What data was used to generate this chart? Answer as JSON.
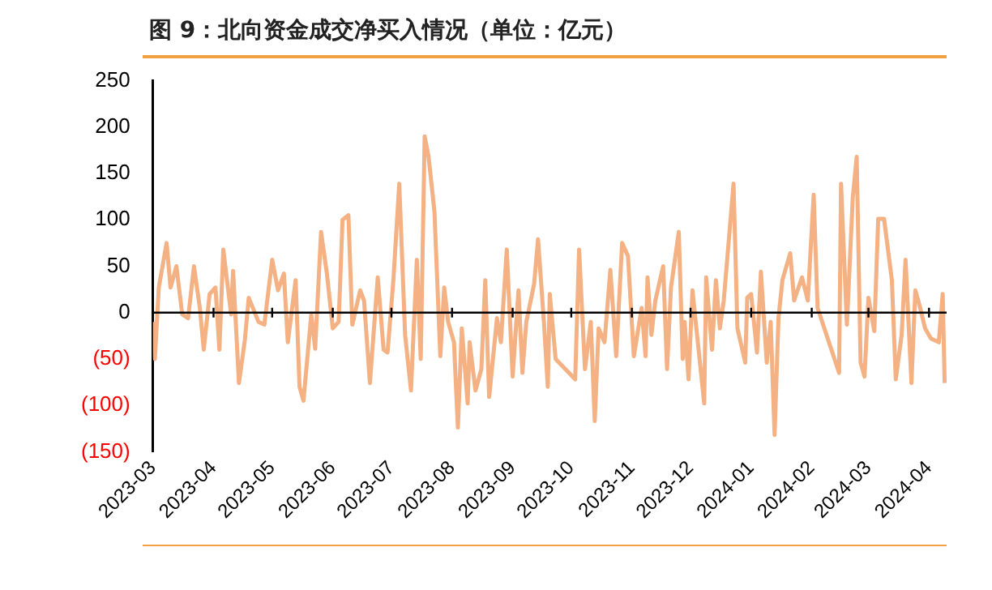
{
  "chart_data": {
    "type": "line",
    "title": "图 9：北向资金成交净买入情况（单位：亿元）",
    "x": [
      "2023-03-01",
      "2023-03-02",
      "2023-03-04",
      "2023-03-08",
      "2023-03-10",
      "2023-03-13",
      "2023-03-16",
      "2023-03-19",
      "2023-03-22",
      "2023-03-25",
      "2023-03-27",
      "2023-03-30",
      "2023-04-02",
      "2023-04-04",
      "2023-04-06",
      "2023-04-10",
      "2023-04-11",
      "2023-04-14",
      "2023-04-17",
      "2023-04-19",
      "2023-04-24",
      "2023-04-27",
      "2023-05-01",
      "2023-05-04",
      "2023-05-07",
      "2023-05-09",
      "2023-05-13",
      "2023-05-15",
      "2023-05-17",
      "2023-05-21",
      "2023-05-23",
      "2023-05-26",
      "2023-05-29",
      "2023-06-01",
      "2023-06-04",
      "2023-06-06",
      "2023-06-09",
      "2023-06-11",
      "2023-06-15",
      "2023-06-17",
      "2023-06-20",
      "2023-06-24",
      "2023-06-27",
      "2023-06-29",
      "2023-07-02",
      "2023-07-05",
      "2023-07-08",
      "2023-07-11",
      "2023-07-14",
      "2023-07-16",
      "2023-07-18",
      "2023-07-20",
      "2023-07-23",
      "2023-07-26",
      "2023-07-28",
      "2023-07-30",
      "2023-08-02",
      "2023-08-04",
      "2023-08-06",
      "2023-08-09",
      "2023-08-10",
      "2023-08-13",
      "2023-08-16",
      "2023-08-18",
      "2023-08-20",
      "2023-08-24",
      "2023-08-26",
      "2023-08-29",
      "2023-09-01",
      "2023-09-04",
      "2023-09-06",
      "2023-09-08",
      "2023-09-12",
      "2023-09-14",
      "2023-09-17",
      "2023-09-19",
      "2023-09-20",
      "2023-09-23",
      "2023-10-03",
      "2023-10-05",
      "2023-10-08",
      "2023-10-11",
      "2023-10-13",
      "2023-10-15",
      "2023-10-18",
      "2023-10-21",
      "2023-10-24",
      "2023-10-27",
      "2023-10-30",
      "2023-11-02",
      "2023-11-06",
      "2023-11-08",
      "2023-11-09",
      "2023-11-11",
      "2023-11-13",
      "2023-11-17",
      "2023-11-19",
      "2023-11-21",
      "2023-11-25",
      "2023-11-27",
      "2023-11-28",
      "2023-11-30",
      "2023-12-02",
      "2023-12-04",
      "2023-12-08",
      "2023-12-09",
      "2023-12-12",
      "2023-12-14",
      "2023-12-16",
      "2023-12-18",
      "2023-12-23",
      "2023-12-25",
      "2023-12-29",
      "2023-12-30",
      "2024-01-01",
      "2024-01-04",
      "2024-01-06",
      "2024-01-09",
      "2024-01-11",
      "2024-01-13",
      "2024-01-15",
      "2024-01-17",
      "2024-01-21",
      "2024-01-23",
      "2024-01-27",
      "2024-01-30",
      "2024-02-02",
      "2024-02-04",
      "2024-02-15",
      "2024-02-16",
      "2024-02-19",
      "2024-02-22",
      "2024-02-24",
      "2024-02-26",
      "2024-02-28",
      "2024-03-01",
      "2024-03-04",
      "2024-03-06",
      "2024-03-09",
      "2024-03-13",
      "2024-03-15",
      "2024-03-18",
      "2024-03-20",
      "2024-03-23",
      "2024-03-25",
      "2024-03-27",
      "2024-03-30",
      "2024-04-02",
      "2024-04-06",
      "2024-04-08",
      "2024-04-09"
    ],
    "series": [
      {
        "color": "#f4b183",
        "values": [
          -10,
          -50,
          27,
          75,
          27,
          50,
          -2,
          -6,
          50,
          5,
          -40,
          20,
          27,
          -40,
          68,
          -2,
          45,
          -76,
          -30,
          16,
          -10,
          -13,
          57,
          24,
          42,
          -32,
          35,
          -80,
          -95,
          -2,
          -39,
          87,
          42,
          -17,
          -10,
          100,
          105,
          -13,
          24,
          13,
          -76,
          38,
          -40,
          -43,
          35,
          139,
          -24,
          -84,
          57,
          -50,
          190,
          168,
          109,
          -47,
          27,
          -10,
          -32,
          -124,
          -17,
          -98,
          -32,
          -84,
          -61,
          35,
          -91,
          -6,
          -32,
          68,
          -69,
          24,
          -65,
          -10,
          31,
          79,
          -10,
          -80,
          20,
          -50,
          -72,
          68,
          -61,
          -10,
          -117,
          -17,
          -32,
          46,
          -47,
          75,
          61,
          -47,
          5,
          -47,
          38,
          -24,
          13,
          50,
          -61,
          27,
          87,
          -50,
          -10,
          -72,
          24,
          -17,
          -98,
          38,
          -40,
          35,
          -17,
          13,
          139,
          -17,
          -54,
          16,
          20,
          -43,
          44,
          -54,
          -10,
          -132,
          -6,
          35,
          64,
          13,
          38,
          13,
          127,
          5,
          -65,
          139,
          -13,
          124,
          168,
          -54,
          -69,
          16,
          -20,
          101,
          101,
          35,
          -72,
          -24,
          57,
          -76,
          24,
          9,
          -17,
          -28,
          -32,
          20,
          -76
        ]
      }
    ],
    "xlim": [
      "2023-03-01",
      "2024-04-10"
    ],
    "xticks": [
      {
        "value": "2023-03-01",
        "label": "2023-03"
      },
      {
        "value": "2023-04-01",
        "label": "2023-04"
      },
      {
        "value": "2023-05-01",
        "label": "2023-05"
      },
      {
        "value": "2023-06-01",
        "label": "2023-06"
      },
      {
        "value": "2023-07-01",
        "label": "2023-07"
      },
      {
        "value": "2023-08-01",
        "label": "2023-08"
      },
      {
        "value": "2023-09-01",
        "label": "2023-09"
      },
      {
        "value": "2023-10-01",
        "label": "2023-10"
      },
      {
        "value": "2023-11-01",
        "label": "2023-11"
      },
      {
        "value": "2023-12-01",
        "label": "2023-12"
      },
      {
        "value": "2024-01-01",
        "label": "2024-01"
      },
      {
        "value": "2024-02-01",
        "label": "2024-02"
      },
      {
        "value": "2024-03-01",
        "label": "2024-03"
      },
      {
        "value": "2024-04-01",
        "label": "2024-04"
      }
    ],
    "ylim": [
      -150,
      250
    ],
    "yticks": [
      {
        "value": -150,
        "label": "(150)"
      },
      {
        "value": -100,
        "label": "(100)"
      },
      {
        "value": -50,
        "label": "(50)"
      },
      0,
      50,
      100,
      150,
      200,
      250
    ],
    "ref_lines": [
      {
        "axis": "y",
        "value": 0,
        "color": "#000000",
        "line_style": "solid"
      }
    ],
    "grid": false,
    "legend": false,
    "marker": "none",
    "line_style": "solid"
  }
}
